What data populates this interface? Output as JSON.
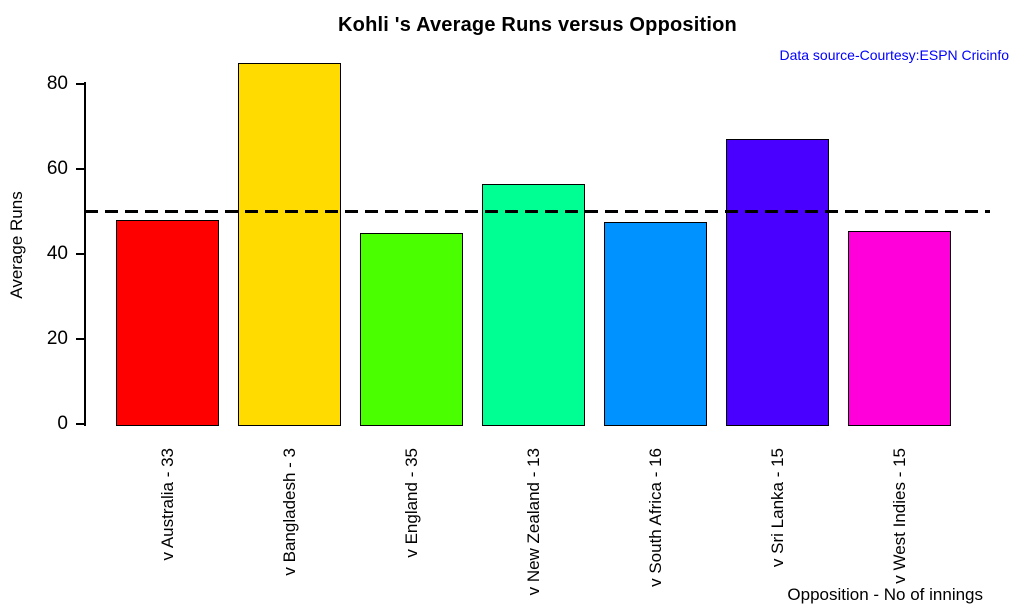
{
  "chart_data": {
    "type": "bar",
    "title": "Kohli 's Average Runs versus Opposition",
    "source_note": "Data source-Courtesy:ESPN Cricinfo",
    "xlabel": "Opposition - No of innings",
    "ylabel": "Average Runs",
    "categories": [
      "v Australia - 33",
      "v Bangladesh - 3",
      "v England - 35",
      "v New Zealand - 13",
      "v South Africa - 16",
      "v Sri Lanka - 15",
      "v West Indies - 15"
    ],
    "values": [
      48,
      85,
      45,
      56.5,
      47.5,
      67,
      45.5
    ],
    "bar_colors": [
      "#FF0000",
      "#FFDB00",
      "#49FF00",
      "#00FF92",
      "#0092FF",
      "#4900FF",
      "#FF00DB"
    ],
    "reference_line": 50,
    "y_ticks": [
      0,
      20,
      40,
      60,
      80
    ],
    "ylim": [
      0,
      85
    ],
    "grid": false,
    "legend": "none",
    "colors": {
      "title": "#000000",
      "source_note": "#0000FF",
      "reference_line": "#000000",
      "bar_border": "#000000",
      "axis": "#000000"
    }
  }
}
